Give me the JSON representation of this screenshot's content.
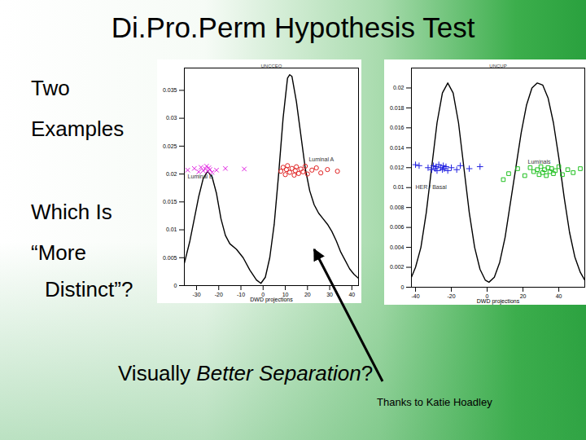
{
  "slide": {
    "title": "Di.Pro.Perm Hypothesis Test",
    "side_text": [
      "Two",
      "Examples",
      "Which Is",
      "“More",
      "Distinct”?"
    ],
    "caption": [
      {
        "text": "Visually "
      },
      {
        "text": "Better Separation",
        "italic": true
      },
      {
        "text": "?"
      }
    ],
    "credit": "Thanks to Katie Hoadley"
  },
  "chart_data": [
    {
      "type": "line",
      "title": "UNCCEO",
      "xlabel": "DWD projections",
      "xlim": [
        -35.5,
        43
      ],
      "ylim": [
        0,
        0.039
      ],
      "xticks": [
        -30,
        -20,
        -10,
        0,
        10,
        20,
        30,
        40
      ],
      "yticks": [
        0,
        0.005,
        0.01,
        0.015,
        0.02,
        0.025,
        0.03,
        0.035
      ],
      "grid": false,
      "annotations": [
        {
          "text": "Luminal B",
          "x": -34,
          "y": 0.0195
        },
        {
          "text": "Luminal A",
          "x": 20.6,
          "y": 0.0226
        }
      ],
      "series": [
        {
          "type": "line",
          "color": "#000000",
          "x": [
            -35.5,
            -33,
            -31,
            -29,
            -27,
            -25,
            -23,
            -21,
            -19,
            -17,
            -15,
            -12,
            -9,
            -6,
            -3,
            -1,
            1,
            3,
            5,
            7,
            9,
            11,
            12,
            13,
            15,
            17,
            19,
            21,
            23,
            25,
            27,
            29,
            31,
            33,
            35,
            37,
            39,
            41,
            43
          ],
          "values": [
            0.004,
            0.008,
            0.012,
            0.016,
            0.0192,
            0.0205,
            0.0195,
            0.0165,
            0.012,
            0.009,
            0.0075,
            0.0065,
            0.005,
            0.0028,
            0.001,
            0.0004,
            0.0015,
            0.005,
            0.011,
            0.02,
            0.03,
            0.0372,
            0.0378,
            0.0375,
            0.033,
            0.027,
            0.021,
            0.017,
            0.0145,
            0.013,
            0.012,
            0.011,
            0.0097,
            0.008,
            0.006,
            0.0045,
            0.003,
            0.002,
            0.0013
          ]
        },
        {
          "type": "scatter",
          "marker": "x",
          "color": "#e020e0",
          "x": [
            -34,
            -31,
            -29,
            -28,
            -27,
            -26,
            -25.5,
            -25,
            -24.5,
            -24,
            -23,
            -21,
            -17,
            -8.5
          ],
          "values": [
            0.0207,
            0.021,
            0.0204,
            0.0212,
            0.0206,
            0.0209,
            0.0214,
            0.0205,
            0.0211,
            0.0208,
            0.0203,
            0.0207,
            0.021,
            0.0209
          ]
        },
        {
          "type": "scatter",
          "marker": "circle",
          "color": "#e02020",
          "x": [
            8,
            9,
            10,
            10.5,
            11,
            12,
            13,
            14,
            14.5,
            15,
            16,
            17,
            18,
            19,
            20,
            22,
            24,
            26,
            29,
            33.5
          ],
          "values": [
            0.0205,
            0.0212,
            0.0199,
            0.0208,
            0.0215,
            0.0203,
            0.021,
            0.0198,
            0.0206,
            0.0213,
            0.0201,
            0.0209,
            0.0204,
            0.0214,
            0.02,
            0.0207,
            0.0211,
            0.0202,
            0.0208,
            0.0205
          ]
        }
      ]
    },
    {
      "type": "line",
      "title": "UNCUP",
      "xlabel": "DWD projections",
      "xlim": [
        -42.3,
        54.5
      ],
      "ylim": [
        0,
        0.022
      ],
      "xticks": [
        -40,
        -20,
        0,
        20,
        40
      ],
      "yticks": [
        0,
        0.002,
        0.004,
        0.006,
        0.008,
        0.01,
        0.012,
        0.014,
        0.016,
        0.018,
        0.02
      ],
      "grid": false,
      "annotations": [
        {
          "text": "Luminals",
          "x": 22.7,
          "y": 0.0126
        },
        {
          "text": "HER / Basal",
          "x": -40,
          "y": 0.01
        }
      ],
      "series": [
        {
          "type": "line",
          "color": "#000000",
          "x": [
            -42.3,
            -40,
            -37,
            -34,
            -31,
            -28,
            -25,
            -22,
            -19,
            -16,
            -13,
            -10,
            -7,
            -4,
            -1,
            1,
            4,
            7,
            10,
            13,
            16,
            19,
            22,
            25,
            28,
            31,
            34,
            37,
            40,
            43,
            46,
            49,
            52,
            54.5
          ],
          "values": [
            0.001,
            0.002,
            0.004,
            0.0075,
            0.012,
            0.0165,
            0.0195,
            0.0205,
            0.0195,
            0.0165,
            0.012,
            0.0075,
            0.004,
            0.0018,
            0.0007,
            0.0005,
            0.001,
            0.0025,
            0.005,
            0.0085,
            0.012,
            0.0155,
            0.0183,
            0.02,
            0.0205,
            0.0203,
            0.019,
            0.0165,
            0.013,
            0.009,
            0.0055,
            0.003,
            0.0015,
            0.0007
          ]
        },
        {
          "type": "scatter",
          "marker": "plus",
          "color": "#2020e0",
          "x": [
            -40,
            -38,
            -33,
            -31,
            -30,
            -29,
            -28.5,
            -28,
            -27,
            -26,
            -25,
            -24.5,
            -24,
            -23,
            -22,
            -20,
            -17,
            -15,
            -10,
            -4
          ],
          "values": [
            0.0123,
            0.0122,
            0.012,
            0.0118,
            0.0122,
            0.0119,
            0.0121,
            0.0117,
            0.0123,
            0.012,
            0.0118,
            0.0122,
            0.0119,
            0.0121,
            0.0117,
            0.012,
            0.0118,
            0.0122,
            0.0119,
            0.0121
          ]
        },
        {
          "type": "scatter",
          "marker": "square",
          "color": "#20c020",
          "x": [
            9,
            12,
            17,
            21,
            24,
            26,
            28,
            29,
            30,
            31,
            32,
            33,
            34,
            35,
            36,
            37,
            38,
            40,
            42,
            45,
            48,
            52
          ],
          "values": [
            0.0108,
            0.0114,
            0.0119,
            0.0112,
            0.012,
            0.0116,
            0.0118,
            0.0113,
            0.0121,
            0.0115,
            0.0118,
            0.0112,
            0.012,
            0.0116,
            0.0119,
            0.0114,
            0.0117,
            0.0121,
            0.0113,
            0.0118,
            0.0115,
            0.0119
          ]
        }
      ]
    }
  ]
}
